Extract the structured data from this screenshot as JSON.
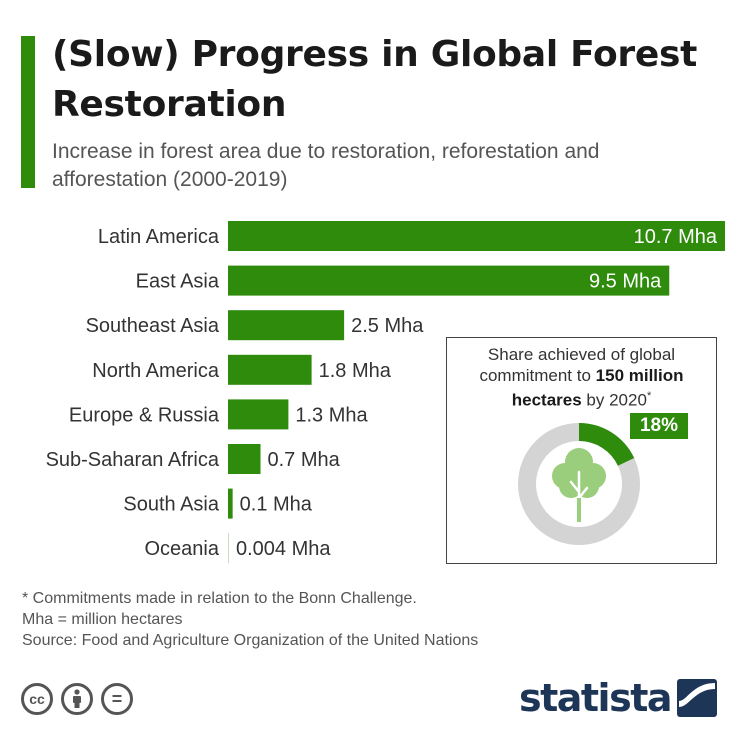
{
  "header": {
    "title": "(Slow) Progress in Global Forest Restoration",
    "subtitle": "Increase in forest area due to restoration, reforestation and afforestation (2000-2019)"
  },
  "colors": {
    "accent": "#2e8b0c",
    "ring": "#d4d4d4",
    "tree": "#9acd7c",
    "brand": "#1d3557"
  },
  "chart_data": {
    "type": "bar",
    "orientation": "horizontal",
    "title": "(Slow) Progress in Global Forest Restoration",
    "subtitle": "Increase in forest area due to restoration, reforestation and afforestation (2000-2019)",
    "unit": "Mha",
    "categories": [
      "Latin America",
      "East Asia",
      "Southeast Asia",
      "North America",
      "Europe & Russia",
      "Sub-Saharan Africa",
      "South Asia",
      "Oceania"
    ],
    "values": [
      10.7,
      9.5,
      2.5,
      1.8,
      1.3,
      0.7,
      0.1,
      0.004
    ],
    "value_labels": [
      "10.7 Mha",
      "9.5 Mha",
      "2.5 Mha",
      "1.8 Mha",
      "1.3 Mha",
      "0.7 Mha",
      "0.1 Mha",
      "0.004 Mha"
    ],
    "xlim": [
      0,
      10.7
    ],
    "grid": false,
    "legend": "none"
  },
  "share": {
    "title_pre": "Share achieved of global commitment to ",
    "title_bold": "150 million hectares",
    "title_post": " by 2020",
    "footnote_mark": "*",
    "percent_label": "18%",
    "percent_value": 18,
    "icon": "tree-icon"
  },
  "notes": {
    "commitments": "* Commitments made in relation to the Bonn Challenge.",
    "mha": "Mha = million hectares",
    "source": "Source: Food and Agriculture Organization of the United Nations"
  },
  "license_icons": [
    {
      "name": "cc-icon",
      "label": "cc"
    },
    {
      "name": "attribution-icon",
      "label": ""
    },
    {
      "name": "no-derivatives-icon",
      "label": "="
    }
  ],
  "brand": {
    "name": "statista",
    "icon": "statista-logo-icon"
  }
}
